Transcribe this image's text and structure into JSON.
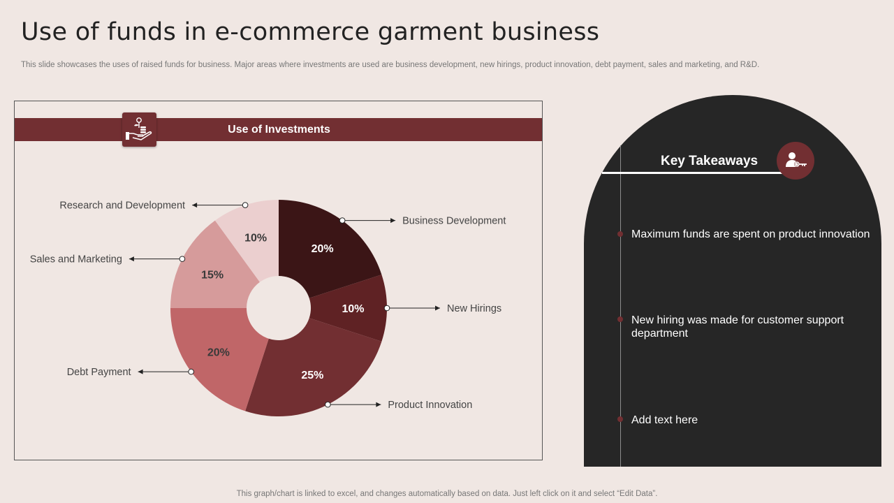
{
  "title": "Use of funds in e-commerce garment business",
  "subtitle": "This slide showcases the uses of raised funds for business. Major areas where investments are used are business development, new hirings, product innovation, debt payment, sales and marketing, and R&D.",
  "footer": "This graph/chart is linked to excel,  and changes automatically based on data. Just left click on it and select “Edit Data”.",
  "panel": {
    "title": "Use of Investments",
    "icon": "money-plant-hand-icon"
  },
  "chart_data": {
    "type": "pie",
    "donut": true,
    "legend": "callout-labels",
    "slices": [
      {
        "label": "Business Development",
        "value": 20,
        "value_label": "20%",
        "color": "#3b1516"
      },
      {
        "label": "New Hirings",
        "value": 10,
        "value_label": "10%",
        "color": "#5f2224"
      },
      {
        "label": "Product Innovation",
        "value": 25,
        "value_label": "25%",
        "color": "#722f32"
      },
      {
        "label": "Debt Payment",
        "value": 20,
        "value_label": "20%",
        "color": "#c06668"
      },
      {
        "label": "Sales and Marketing",
        "value": 15,
        "value_label": "15%",
        "color": "#d69b9b"
      },
      {
        "label": "Research and Development",
        "value": 10,
        "value_label": "10%",
        "color": "#ebcfcf"
      }
    ]
  },
  "takeaways": {
    "title": "Key Takeaways",
    "icon": "person-key-icon",
    "points": [
      "Maximum funds are spent on product innovation",
      "New hiring was made for customer support department",
      "Add text here"
    ]
  },
  "colors": {
    "background": "#f0e7e3",
    "accent": "#722f32",
    "dark": "#262626"
  }
}
